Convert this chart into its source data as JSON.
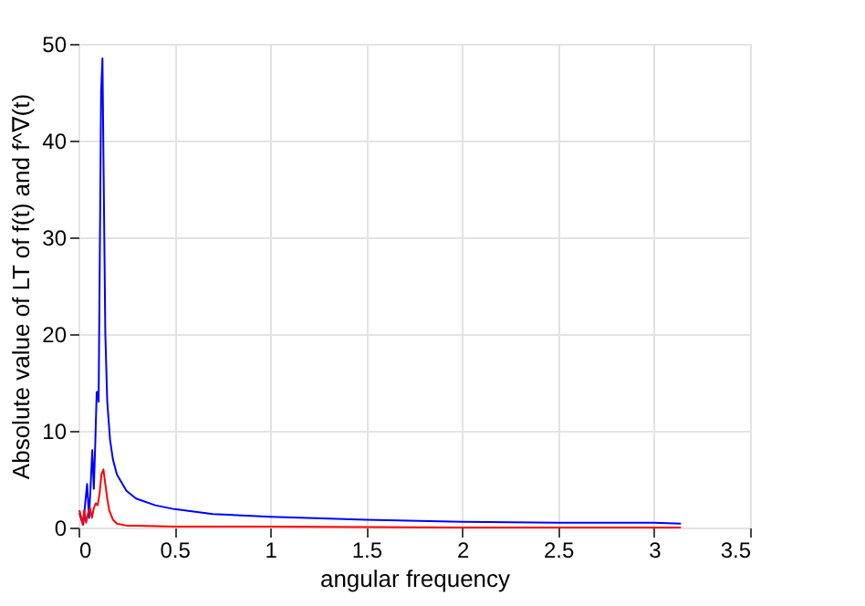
{
  "chart_data": {
    "type": "line",
    "xlabel": "angular frequency",
    "ylabel": "Absolute value of LT of f(t) and f^∇(t)",
    "xlim": [
      0,
      3.5
    ],
    "xticks": [
      0,
      0.5,
      1,
      1.5,
      2,
      2.5,
      3,
      3.5
    ],
    "ylim": [
      0,
      50
    ],
    "yticks": [
      0,
      10,
      20,
      30,
      40,
      50
    ],
    "grid": true,
    "series": [
      {
        "color": "#0000ff",
        "x": [
          0.005,
          0.015,
          0.025,
          0.035,
          0.045,
          0.055,
          0.065,
          0.072,
          0.08,
          0.088,
          0.095,
          0.1,
          0.105,
          0.112,
          0.118,
          0.125,
          0.132,
          0.14,
          0.15,
          0.165,
          0.18,
          0.2,
          0.25,
          0.3,
          0.4,
          0.5,
          0.7,
          1,
          1.5,
          2,
          2.5,
          3,
          3.14
        ],
        "values": [
          1.5,
          0.8,
          0.3,
          2.5,
          4.5,
          1,
          5,
          8,
          4,
          9,
          14,
          14,
          13,
          30,
          45,
          48.5,
          35,
          20,
          13,
          9,
          7,
          5.5,
          3.8,
          3,
          2.3,
          1.9,
          1.4,
          1.1,
          0.8,
          0.6,
          0.5,
          0.5,
          0.4
        ]
      },
      {
        "color": "#ff0000",
        "x": [
          0.005,
          0.015,
          0.022,
          0.03,
          0.04,
          0.05,
          0.06,
          0.07,
          0.08,
          0.09,
          0.1,
          0.11,
          0.12,
          0.13,
          0.14,
          0.15,
          0.16,
          0.18,
          0.2,
          0.25,
          0.3,
          0.5,
          1,
          2,
          3.14
        ],
        "values": [
          1.8,
          1,
          0.3,
          1.8,
          0.5,
          1.5,
          2,
          1,
          2,
          2.5,
          2.3,
          3.5,
          5.5,
          6,
          4.5,
          3,
          1.8,
          0.8,
          0.4,
          0.2,
          0.2,
          0.1,
          0.1,
          0.0,
          0.0
        ]
      }
    ]
  }
}
